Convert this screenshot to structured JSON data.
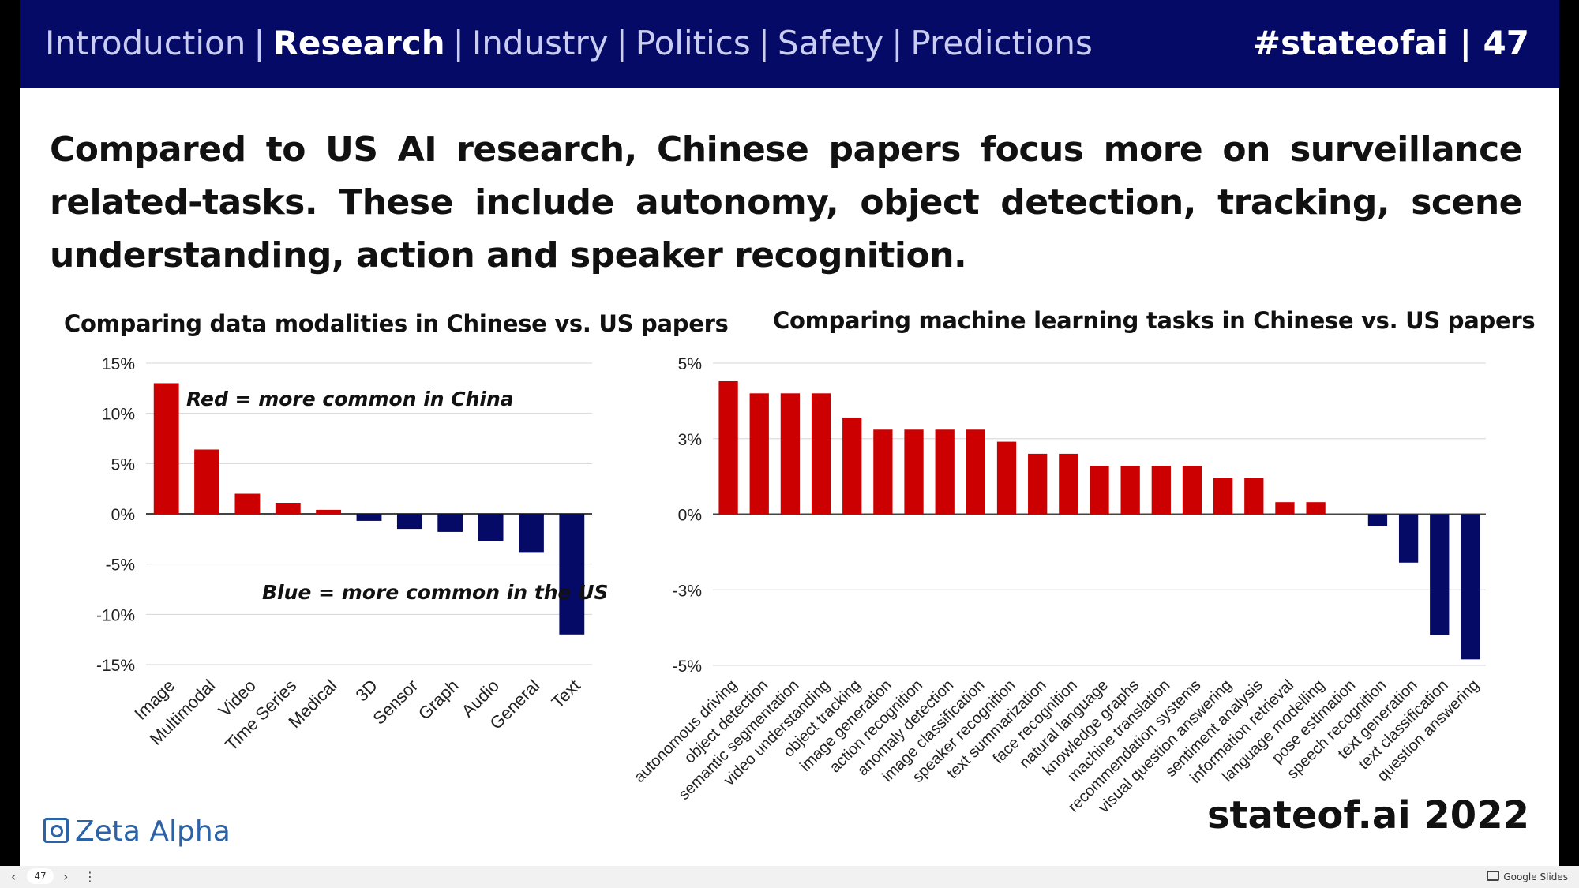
{
  "header": {
    "nav": [
      {
        "label": "Introduction",
        "active": false
      },
      {
        "label": "Research",
        "active": true
      },
      {
        "label": "Industry",
        "active": false
      },
      {
        "label": "Politics",
        "active": false
      },
      {
        "label": "Safety",
        "active": false
      },
      {
        "label": "Predictions",
        "active": false
      }
    ],
    "separator": "|",
    "tag": "#stateofai | 47"
  },
  "headline": "Compared to US AI research, Chinese papers focus more on surveillance related-tasks. These include autonomy, object detection, tracking, scene understanding, action and speaker recognition.",
  "colors": {
    "china": "#cc0000",
    "us": "#050a66",
    "header_bg": "#050a66",
    "brand": "#2a63a8"
  },
  "chart_data": [
    {
      "type": "bar",
      "title": "Comparing data modalities in Chinese vs. US papers",
      "categories": [
        "Image",
        "Multimodal",
        "Video",
        "Time Series",
        "Medical",
        "3D",
        "Sensor",
        "Graph",
        "Audio",
        "General",
        "Text"
      ],
      "values": [
        13,
        6.4,
        2,
        1.1,
        0.4,
        -0.7,
        -1.5,
        -1.8,
        -2.7,
        -3.8,
        -12
      ],
      "yticks": [
        "15%",
        "10%",
        "5%",
        "0%",
        "-5%",
        "-10%",
        "-15%"
      ],
      "ylim": [
        -15,
        15
      ],
      "ytick_values": [
        15,
        10,
        5,
        0,
        -5,
        -10,
        -15
      ],
      "annotations": [
        "Red = more common in China",
        "Blue = more common in the US"
      ],
      "grid": true
    },
    {
      "type": "bar",
      "title": "Comparing machine learning tasks in Chinese vs. US papers",
      "categories": [
        "autonomous driving",
        "object detection",
        "semantic segmentation",
        "video understanding",
        "object tracking",
        "image generation",
        "action recognition",
        "anomaly detection",
        "image classification",
        "speaker recognition",
        "text summarization",
        "face recognition",
        "natural language",
        "knowledge graphs",
        "machine translation",
        "recommendation systems",
        "visual question answering",
        "sentiment analysis",
        "information retrieval",
        "language modelling",
        "pose estimation",
        "speech recognition",
        "text generation",
        "text classification",
        "question answering"
      ],
      "values": [
        4.4,
        4.0,
        4.0,
        4.0,
        3.2,
        2.8,
        2.8,
        2.8,
        2.8,
        2.4,
        2.0,
        2.0,
        1.6,
        1.6,
        1.6,
        1.6,
        1.2,
        1.2,
        0.4,
        0.4,
        0,
        -0.4,
        -1.6,
        -4.0,
        -4.8
      ],
      "yticks": [
        "5%",
        "3%",
        "0%",
        "-3%",
        "-5%"
      ],
      "ylim": [
        -5,
        5
      ],
      "ytick_values": [
        5,
        2.5,
        0,
        -2.5,
        -5
      ],
      "grid": true
    }
  ],
  "footer": {
    "brand": "Zeta Alpha",
    "site": "stateof.ai 2022"
  },
  "toolbar": {
    "page": "47",
    "prev": "‹",
    "next": "›",
    "more": "⋮",
    "app_label": "Google Slides"
  }
}
